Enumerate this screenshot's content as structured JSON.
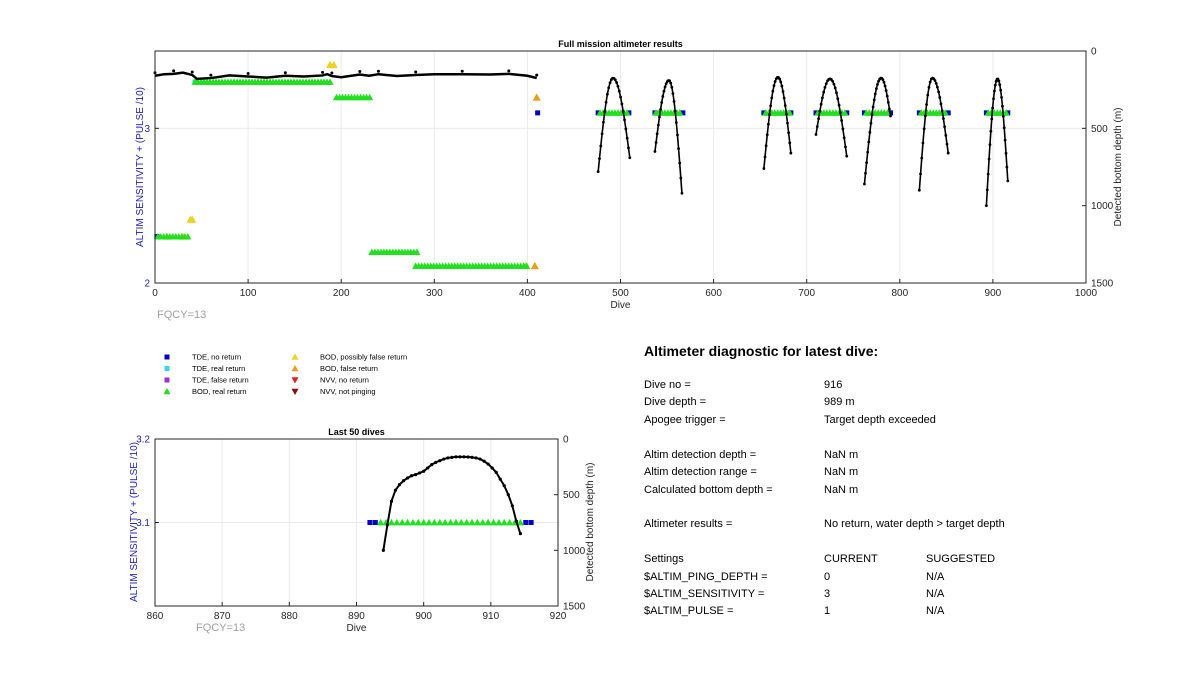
{
  "chart_data": [
    {
      "type": "scatter",
      "title": "Full mission altimeter results",
      "xlabel": "Dive",
      "ylabel": "ALTIM SENSITIVITY + (PULSE /10)",
      "y2label": "Detected bottom depth (m)",
      "xlim": [
        0,
        1000
      ],
      "ylim": [
        2,
        3.5
      ],
      "y2lim": [
        0,
        1500
      ],
      "y2_reversed": true,
      "xticks": [
        "0",
        "100",
        "200",
        "300",
        "400",
        "500",
        "600",
        "700",
        "800",
        "900",
        "1000"
      ],
      "yticks": [
        "2",
        "3"
      ],
      "y2ticks": [
        "0",
        "500",
        "1000",
        "1500"
      ],
      "grid": true,
      "annotation": "FQCY=13",
      "series": [
        {
          "name": "TDE, no return",
          "color": "#0000cd",
          "marker": "square",
          "points": [
            [
              411,
              3.1
            ],
            [
              476,
              3.1
            ],
            [
              509,
              3.1
            ],
            [
              537,
              3.1
            ],
            [
              567,
              3.1
            ],
            [
              654,
              3.1
            ],
            [
              683,
              3.1
            ],
            [
              710,
              3.1
            ],
            [
              743,
              3.1
            ],
            [
              762,
              3.1
            ],
            [
              790,
              3.1
            ],
            [
              821,
              3.1
            ],
            [
              852,
              3.1
            ],
            [
              893,
              3.1
            ],
            [
              916,
              3.1
            ],
            [
              2,
              2.3
            ]
          ]
        },
        {
          "name": "TDE, real return",
          "color": "#30d8f0",
          "marker": "square",
          "points": [
            [
              43,
              3.3
            ]
          ]
        },
        {
          "name": "BOD, possibly false return",
          "color": "#f0d020",
          "marker": "triangle-up",
          "points": [
            [
              188,
              3.41
            ],
            [
              192,
              3.41
            ],
            [
              38,
              2.41
            ],
            [
              40,
              2.41
            ],
            [
              13,
              2.3
            ],
            [
              30,
              2.3
            ],
            [
              398,
              2.11
            ],
            [
              408,
              2.11
            ]
          ]
        },
        {
          "name": "BOD, false return",
          "color": "#f29a1a",
          "marker": "triangle-up",
          "points": [
            [
              410,
              3.2
            ],
            [
              408,
              2.11
            ]
          ]
        },
        {
          "name": "BOD, real return",
          "color": "#20e020",
          "marker": "triangle-up",
          "segments": [
            [
              43,
              190,
              3.3
            ],
            [
              195,
              233,
              3.2
            ],
            [
              478,
              508,
              3.1
            ],
            [
              538,
              566,
              3.1
            ],
            [
              656,
              682,
              3.1
            ],
            [
              712,
              742,
              3.1
            ],
            [
              764,
              789,
              3.1
            ],
            [
              823,
              851,
              3.1
            ],
            [
              895,
              915,
              3.1
            ],
            [
              3,
              38,
              2.3
            ],
            [
              233,
              283,
              2.2
            ],
            [
              280,
              400,
              2.11
            ]
          ]
        }
      ],
      "depth_series": {
        "name": "Detected bottom depth (m)",
        "color": "#000000",
        "shallow_line": [
          [
            0,
            160
          ],
          [
            10,
            150
          ],
          [
            20,
            148
          ],
          [
            30,
            140
          ],
          [
            40,
            155
          ],
          [
            45,
            180
          ],
          [
            60,
            175
          ],
          [
            80,
            158
          ],
          [
            100,
            165
          ],
          [
            120,
            172
          ],
          [
            140,
            160
          ],
          [
            160,
            165
          ],
          [
            180,
            158
          ],
          [
            185,
            150
          ],
          [
            190,
            162
          ],
          [
            200,
            170
          ],
          [
            220,
            152
          ],
          [
            230,
            160
          ],
          [
            240,
            150
          ],
          [
            260,
            162
          ],
          [
            280,
            155
          ],
          [
            300,
            150
          ],
          [
            330,
            150
          ],
          [
            360,
            152
          ],
          [
            380,
            148
          ],
          [
            400,
            160
          ],
          [
            410,
            175
          ]
        ],
        "dives": [
          {
            "min": 476,
            "max": 510,
            "apex": 492,
            "depth_min": 175,
            "down_depth": 780,
            "up_depth": 690
          },
          {
            "min": 537,
            "max": 566,
            "apex": 552,
            "depth_min": 190,
            "down_depth": 650,
            "up_depth": 920
          },
          {
            "min": 654,
            "max": 683,
            "apex": 669,
            "depth_min": 170,
            "down_depth": 760,
            "up_depth": 660
          },
          {
            "min": 710,
            "max": 743,
            "apex": 725,
            "depth_min": 180,
            "down_depth": 540,
            "up_depth": 680
          },
          {
            "min": 762,
            "max": 790,
            "apex": 780,
            "depth_min": 175,
            "down_depth": 860,
            "up_depth": 420
          },
          {
            "min": 821,
            "max": 852,
            "apex": 835,
            "depth_min": 175,
            "down_depth": 900,
            "up_depth": 660
          },
          {
            "min": 893,
            "max": 916,
            "apex": 905,
            "depth_min": 180,
            "down_depth": 1000,
            "up_depth": 840
          }
        ]
      }
    },
    {
      "type": "scatter",
      "title": "Last 50 dives",
      "xlabel": "Dive",
      "ylabel": "ALTIM SENSITIVITY + (PULSE /10)",
      "y2label": "Detected bottom depth (m)",
      "xlim": [
        860,
        920
      ],
      "ylim": [
        3,
        3.2
      ],
      "y2lim": [
        0,
        1500
      ],
      "y2_reversed": true,
      "xticks": [
        "860",
        "870",
        "880",
        "890",
        "900",
        "910",
        "920"
      ],
      "yticks": [
        "3.1",
        "3.2"
      ],
      "y2ticks": [
        "0",
        "500",
        "1000",
        "1500"
      ],
      "grid": true,
      "annotation": "FQCY=13",
      "series": [
        {
          "name": "TDE, no return",
          "color": "#0000cd",
          "marker": "square",
          "points": [
            [
              892,
              3.1
            ],
            [
              892.8,
              3.1
            ],
            [
              915.2,
              3.1
            ],
            [
              916,
              3.1
            ]
          ]
        },
        {
          "name": "BOD, real return",
          "color": "#20e020",
          "marker": "triangle-up",
          "x": [
            893.6,
            894.4,
            895.2,
            896,
            896.8,
            897.6,
            898.4,
            899.2,
            900,
            900.8,
            901.6,
            902.4,
            903.2,
            904,
            904.8,
            905.6,
            906.4,
            907.2,
            908,
            908.8,
            909.6,
            910.4,
            911.2,
            912,
            912.8,
            913.6,
            914.4
          ],
          "y": 3.1
        }
      ],
      "depth_series": {
        "name": "Detected bottom depth (m)",
        "color": "#000000",
        "x": [
          894,
          894.6,
          895.2,
          895.8,
          896.4,
          897,
          897.6,
          898.2,
          898.8,
          899.4,
          900,
          900.6,
          901.2,
          901.8,
          902.4,
          903,
          903.6,
          904.2,
          904.8,
          905.4,
          906,
          906.6,
          907.2,
          907.8,
          908.4,
          909,
          909.6,
          910.2,
          910.8,
          911.4,
          912,
          912.6,
          913.2,
          913.8,
          914.4
        ],
        "depth": [
          1000,
          770,
          560,
          460,
          410,
          375,
          350,
          330,
          320,
          305,
          290,
          260,
          230,
          210,
          195,
          180,
          170,
          165,
          160,
          160,
          160,
          162,
          165,
          170,
          180,
          200,
          225,
          260,
          300,
          360,
          420,
          500,
          600,
          740,
          850
        ]
      }
    }
  ],
  "legend": {
    "items": [
      {
        "label": "TDE, no return",
        "color": "#0000cd",
        "shape": "square"
      },
      {
        "label": "TDE, real return",
        "color": "#30d8f0",
        "shape": "square"
      },
      {
        "label": "TDE, false return",
        "color": "#9a30d0",
        "shape": "square"
      },
      {
        "label": "BOD, real return",
        "color": "#20e020",
        "shape": "triangle-up"
      },
      {
        "label": "BOD, possibly false return",
        "color": "#f0d020",
        "shape": "triangle-up"
      },
      {
        "label": "BOD, false return",
        "color": "#f29a1a",
        "shape": "triangle-up"
      },
      {
        "label": "NVV, no return",
        "color": "#e02020",
        "shape": "triangle-down"
      },
      {
        "label": "NVV, not pinging",
        "color": "#8b1010",
        "shape": "triangle-down"
      }
    ]
  },
  "diagnostic": {
    "title": "Altimeter diagnostic for latest dive:",
    "rows": [
      {
        "label": "Dive no =",
        "value": "916"
      },
      {
        "label": "Dive depth =",
        "value": "989 m"
      },
      {
        "label": "Apogee trigger =",
        "value": "Target depth exceeded"
      },
      {
        "label": "Altim detection depth =",
        "value": "NaN m"
      },
      {
        "label": "Altim detection range =",
        "value": "NaN m"
      },
      {
        "label": "Calculated bottom depth =",
        "value": "NaN m"
      },
      {
        "label": "Altimeter results =",
        "value": "No return, water depth > target depth"
      }
    ],
    "settings_header": {
      "label": "Settings",
      "current": "CURRENT",
      "suggested": "SUGGESTED"
    },
    "settings": [
      {
        "label": "$ALTIM_PING_DEPTH =",
        "current": "0",
        "suggested": "N/A"
      },
      {
        "label": "$ALTIM_SENSITIVITY =",
        "current": "3",
        "suggested": "N/A"
      },
      {
        "label": "$ALTIM_PULSE =",
        "current": "1",
        "suggested": "N/A"
      }
    ]
  }
}
